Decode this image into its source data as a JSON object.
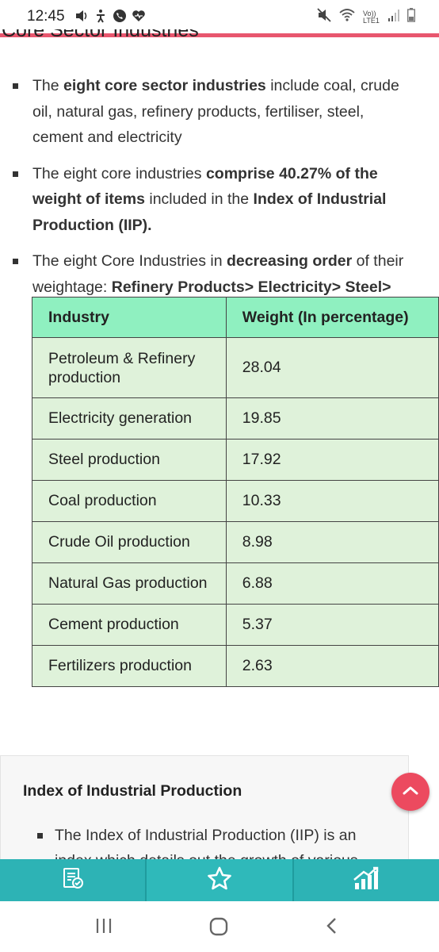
{
  "status": {
    "time": "12:45",
    "network_label": "Vo)) LTE1"
  },
  "section": {
    "title": "Core Sector Industries"
  },
  "points": [
    {
      "parts": [
        {
          "t": "The ",
          "b": false
        },
        {
          "t": "eight core sector industries",
          "b": true
        },
        {
          "t": " include coal, crude oil, natural gas, refinery products, fertiliser, steel, cement and electricity",
          "b": false
        }
      ]
    },
    {
      "parts": [
        {
          "t": "The eight core industries ",
          "b": false
        },
        {
          "t": "comprise 40.27% of the weight of items",
          "b": true
        },
        {
          "t": " included in the ",
          "b": false
        },
        {
          "t": "Index of Industrial Production (IIP).",
          "b": true
        }
      ]
    },
    {
      "parts": [
        {
          "t": "The eight Core Industries in ",
          "b": false
        },
        {
          "t": "decreasing order",
          "b": true
        },
        {
          "t": " of their weightage: ",
          "b": false
        },
        {
          "t": "Refinery Products> Electricity> Steel> Coal> Crude Oil> Natural Gas> Cement> Fertilizers.",
          "b": true
        }
      ]
    }
  ],
  "table": {
    "headers": [
      "Industry",
      "Weight (In percentage)"
    ],
    "rows": [
      [
        "Petroleum & Refinery production",
        "28.04"
      ],
      [
        "Electricity generation",
        "19.85"
      ],
      [
        "Steel production",
        "17.92"
      ],
      [
        "Coal production",
        "10.33"
      ],
      [
        "Crude Oil production",
        "8.98"
      ],
      [
        "Natural Gas production",
        "6.88"
      ],
      [
        "Cement production",
        "5.37"
      ],
      [
        "Fertilizers production",
        "2.63"
      ]
    ]
  },
  "iip": {
    "title": "Index of Industrial Production",
    "item": "The Index of Industrial Production (IIP) is an index which details out the growth of various"
  },
  "colors": {
    "accent": "#e8566e",
    "table_header": "#8ff0c0",
    "table_cell": "#dff2da",
    "app_bar": "#2db3b5",
    "scroll_top": "#ec4a5f"
  },
  "icons": {
    "app_tabs": [
      "notes-check-icon",
      "star-icon",
      "growth-chart-icon"
    ],
    "nav": [
      "recents-icon",
      "home-icon",
      "back-icon"
    ]
  }
}
